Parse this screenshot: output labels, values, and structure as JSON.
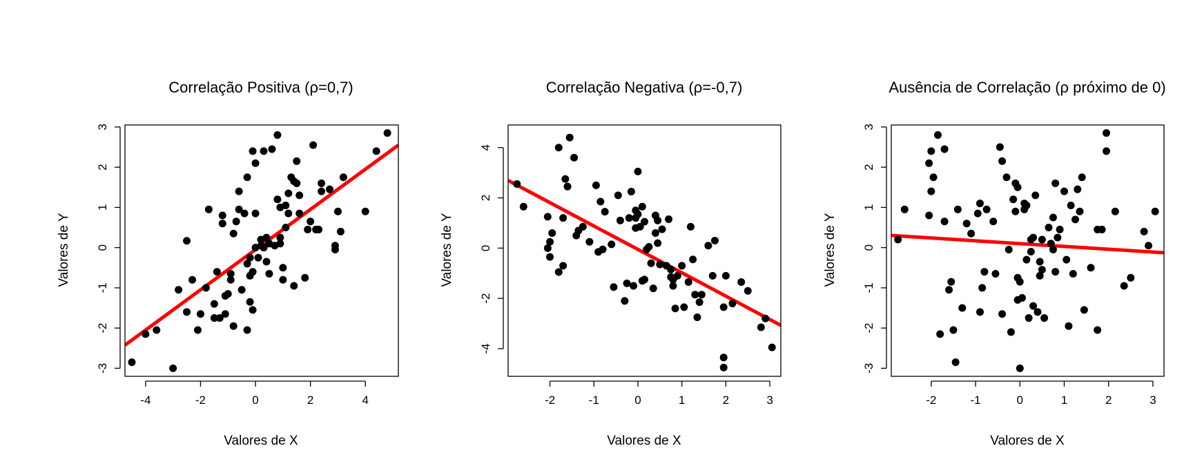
{
  "chart_data": [
    {
      "type": "scatter",
      "title": "Correlação Positiva (ρ=0,7)",
      "xlabel": "Valores de X",
      "ylabel": "Valores de Y",
      "xlim": [
        -4.75,
        5.2
      ],
      "ylim": [
        -3.2,
        3.05
      ],
      "xticks": [
        -4,
        -2,
        0,
        2,
        4
      ],
      "yticks": [
        -3,
        -2,
        -1,
        0,
        1,
        2,
        3
      ],
      "point_color": "#000000",
      "line_color": "#ff0000",
      "regression": {
        "slope": 0.5,
        "intercept": -0.05
      },
      "x": [
        -4.5,
        -4.0,
        -3.6,
        -3.0,
        -2.8,
        -2.5,
        -2.5,
        -2.3,
        -2.1,
        -2.0,
        -1.8,
        -1.7,
        -1.5,
        -1.5,
        -1.4,
        -1.3,
        -1.2,
        -1.2,
        -1.1,
        -1.1,
        -1.0,
        -0.9,
        -0.9,
        -0.8,
        -0.8,
        -0.7,
        -0.6,
        -0.6,
        -0.5,
        -0.4,
        -0.3,
        -0.3,
        -0.3,
        -0.2,
        -0.2,
        -0.2,
        -0.1,
        -0.1,
        -0.1,
        0.0,
        0.0,
        0.0,
        0.1,
        0.2,
        0.2,
        0.3,
        0.3,
        0.4,
        0.4,
        0.5,
        0.5,
        0.6,
        0.7,
        0.8,
        0.8,
        0.9,
        0.9,
        0.9,
        1.0,
        1.0,
        1.1,
        1.1,
        1.2,
        1.2,
        1.3,
        1.4,
        1.4,
        1.5,
        1.5,
        1.6,
        1.6,
        1.8,
        1.9,
        2.0,
        2.1,
        2.2,
        2.3,
        2.4,
        2.4,
        2.7,
        2.9,
        2.9,
        3.0,
        3.1,
        3.2,
        4.0,
        4.4,
        4.8
      ],
      "y": [
        -2.85,
        -2.15,
        -2.05,
        -3.0,
        -1.05,
        0.17,
        -1.6,
        -0.8,
        -2.05,
        -1.65,
        -1.0,
        0.95,
        -1.4,
        -1.75,
        -0.6,
        -1.75,
        0.6,
        0.8,
        -1.2,
        -1.65,
        -1.15,
        -0.65,
        -0.8,
        0.35,
        -1.95,
        0.65,
        0.95,
        1.4,
        -1.05,
        0.85,
        -0.4,
        -2.05,
        1.75,
        -1.35,
        -0.7,
        -0.25,
        2.4,
        -0.6,
        -1.55,
        0.0,
        0.85,
        2.1,
        -0.25,
        0.2,
        0.05,
        2.4,
        0.0,
        0.25,
        -0.35,
        0.1,
        -0.65,
        2.45,
        0.05,
        2.8,
        1.2,
        1.0,
        0.25,
        0.1,
        -0.5,
        -0.8,
        0.5,
        1.05,
        1.35,
        0.85,
        1.75,
        1.65,
        -0.95,
        1.6,
        2.15,
        0.85,
        1.3,
        -0.75,
        0.45,
        0.65,
        2.55,
        0.45,
        0.45,
        1.4,
        1.6,
        1.45,
        0.05,
        -0.05,
        0.9,
        0.4,
        1.75,
        0.9,
        2.4,
        2.85
      ]
    },
    {
      "type": "scatter",
      "title": "Correlação Negativa (ρ=-0,7)",
      "xlabel": "Valores de X",
      "ylabel": "Valores de Y",
      "xlim": [
        -2.95,
        3.25
      ],
      "ylim": [
        -5.1,
        4.9
      ],
      "xticks": [
        -2,
        -1,
        0,
        1,
        2,
        3
      ],
      "yticks": [
        -4,
        -2,
        0,
        2,
        4
      ],
      "point_color": "#000000",
      "line_color": "#ff0000",
      "regression": {
        "slope": -0.93,
        "intercept": -0.05
      },
      "x": [
        -2.75,
        -2.6,
        -2.05,
        -2.05,
        -2.0,
        -2.0,
        -1.95,
        -1.8,
        -1.8,
        -1.7,
        -1.7,
        -1.65,
        -1.6,
        -1.55,
        -1.45,
        -1.4,
        -1.35,
        -1.25,
        -1.1,
        -0.95,
        -0.9,
        -0.85,
        -0.8,
        -0.75,
        -0.6,
        -0.55,
        -0.45,
        -0.4,
        -0.3,
        -0.25,
        -0.2,
        -0.15,
        -0.1,
        -0.05,
        -0.05,
        -0.05,
        0.0,
        0.0,
        0.05,
        0.1,
        0.1,
        0.15,
        0.15,
        0.2,
        0.25,
        0.3,
        0.35,
        0.4,
        0.4,
        0.45,
        0.45,
        0.5,
        0.55,
        0.65,
        0.7,
        0.75,
        0.75,
        0.8,
        0.8,
        0.85,
        0.9,
        1.0,
        1.05,
        1.15,
        1.2,
        1.25,
        1.3,
        1.35,
        1.4,
        1.45,
        1.6,
        1.7,
        1.75,
        1.95,
        1.95,
        1.95,
        2.0,
        2.15,
        2.35,
        2.5,
        2.8,
        2.9,
        3.05
      ],
      "y": [
        2.55,
        1.65,
        1.25,
        0.0,
        0.25,
        -0.35,
        0.6,
        4.0,
        -0.95,
        1.2,
        -0.7,
        2.75,
        2.45,
        4.4,
        3.6,
        0.5,
        0.7,
        0.85,
        0.25,
        2.5,
        -0.15,
        1.85,
        -0.05,
        1.45,
        0.15,
        -1.55,
        2.1,
        1.1,
        -2.1,
        -1.4,
        1.2,
        2.25,
        -1.5,
        1.5,
        1.2,
        0.8,
        3.05,
        1.35,
        0.85,
        1.65,
        -1.3,
        1.05,
        -1.25,
        -0.05,
        0.05,
        -0.6,
        -1.6,
        1.3,
        0.6,
        1.1,
        0.2,
        -0.65,
        0.75,
        -0.7,
        1.15,
        -1.15,
        -0.85,
        -1.5,
        -1.25,
        -2.4,
        -1.1,
        -0.7,
        -2.35,
        -1.35,
        0.85,
        -0.45,
        -1.85,
        -2.75,
        -2.15,
        -1.85,
        0.1,
        -1.1,
        0.3,
        -4.35,
        -4.75,
        -2.35,
        -1.1,
        -2.2,
        -1.35,
        -1.7,
        -3.15,
        -2.8,
        -3.95
      ]
    },
    {
      "type": "scatter",
      "title": "Ausência de Correlação (ρ próximo de 0)",
      "xlabel": "Valores de X",
      "ylabel": "Valores de Y",
      "xlim": [
        -2.9,
        3.25
      ],
      "ylim": [
        -3.2,
        3.05
      ],
      "xticks": [
        -2,
        -1,
        0,
        1,
        2,
        3
      ],
      "yticks": [
        -3,
        -2,
        -1,
        0,
        1,
        2,
        3
      ],
      "point_color": "#000000",
      "line_color": "#ff0000",
      "regression": {
        "slope": -0.07,
        "intercept": 0.1
      },
      "x": [
        -2.75,
        -2.6,
        -2.05,
        -2.05,
        -2.0,
        -2.0,
        -1.95,
        -1.85,
        -1.8,
        -1.7,
        -1.7,
        -1.6,
        -1.55,
        -1.5,
        -1.45,
        -1.4,
        -1.3,
        -1.2,
        -1.1,
        -0.95,
        -0.9,
        -0.9,
        -0.85,
        -0.8,
        -0.75,
        -0.6,
        -0.55,
        -0.45,
        -0.4,
        -0.4,
        -0.3,
        -0.25,
        -0.2,
        -0.15,
        -0.1,
        -0.1,
        -0.05,
        -0.05,
        -0.05,
        0.0,
        0.0,
        0.05,
        0.1,
        0.1,
        0.15,
        0.15,
        0.2,
        0.25,
        0.25,
        0.3,
        0.3,
        0.35,
        0.4,
        0.45,
        0.45,
        0.5,
        0.5,
        0.55,
        0.65,
        0.7,
        0.75,
        0.75,
        0.8,
        0.8,
        0.85,
        0.9,
        1.0,
        1.05,
        1.1,
        1.15,
        1.2,
        1.25,
        1.3,
        1.35,
        1.4,
        1.45,
        1.6,
        1.75,
        1.75,
        1.85,
        1.95,
        1.95,
        2.15,
        2.35,
        2.5,
        2.8,
        2.9,
        3.05
      ],
      "y": [
        0.2,
        0.95,
        0.8,
        2.1,
        2.4,
        1.4,
        1.75,
        2.8,
        -2.15,
        2.45,
        0.65,
        -1.05,
        -0.85,
        -2.05,
        -2.85,
        0.95,
        -1.5,
        0.6,
        0.35,
        0.85,
        -1.6,
        1.1,
        -1.0,
        -0.6,
        0.95,
        0.65,
        -0.65,
        2.5,
        2.15,
        -1.65,
        1.75,
        -0.05,
        -2.1,
        1.2,
        1.6,
        0.9,
        1.5,
        -1.3,
        -0.75,
        -3.0,
        -0.85,
        -1.25,
        1.1,
        0.95,
        1.05,
        -0.3,
        -1.75,
        -0.1,
        0.2,
        0.25,
        -1.45,
        1.3,
        -1.6,
        -0.35,
        -0.7,
        -0.55,
        0.2,
        -1.75,
        0.5,
        0.1,
        -0.05,
        0.75,
        1.6,
        -0.6,
        0.25,
        0.45,
        1.4,
        -0.3,
        -1.95,
        1.05,
        -0.65,
        0.7,
        1.45,
        0.9,
        1.75,
        -1.55,
        -0.5,
        0.45,
        -2.05,
        0.45,
        2.85,
        2.4,
        0.9,
        -0.95,
        -0.75,
        0.4,
        0.05,
        0.9
      ]
    }
  ]
}
